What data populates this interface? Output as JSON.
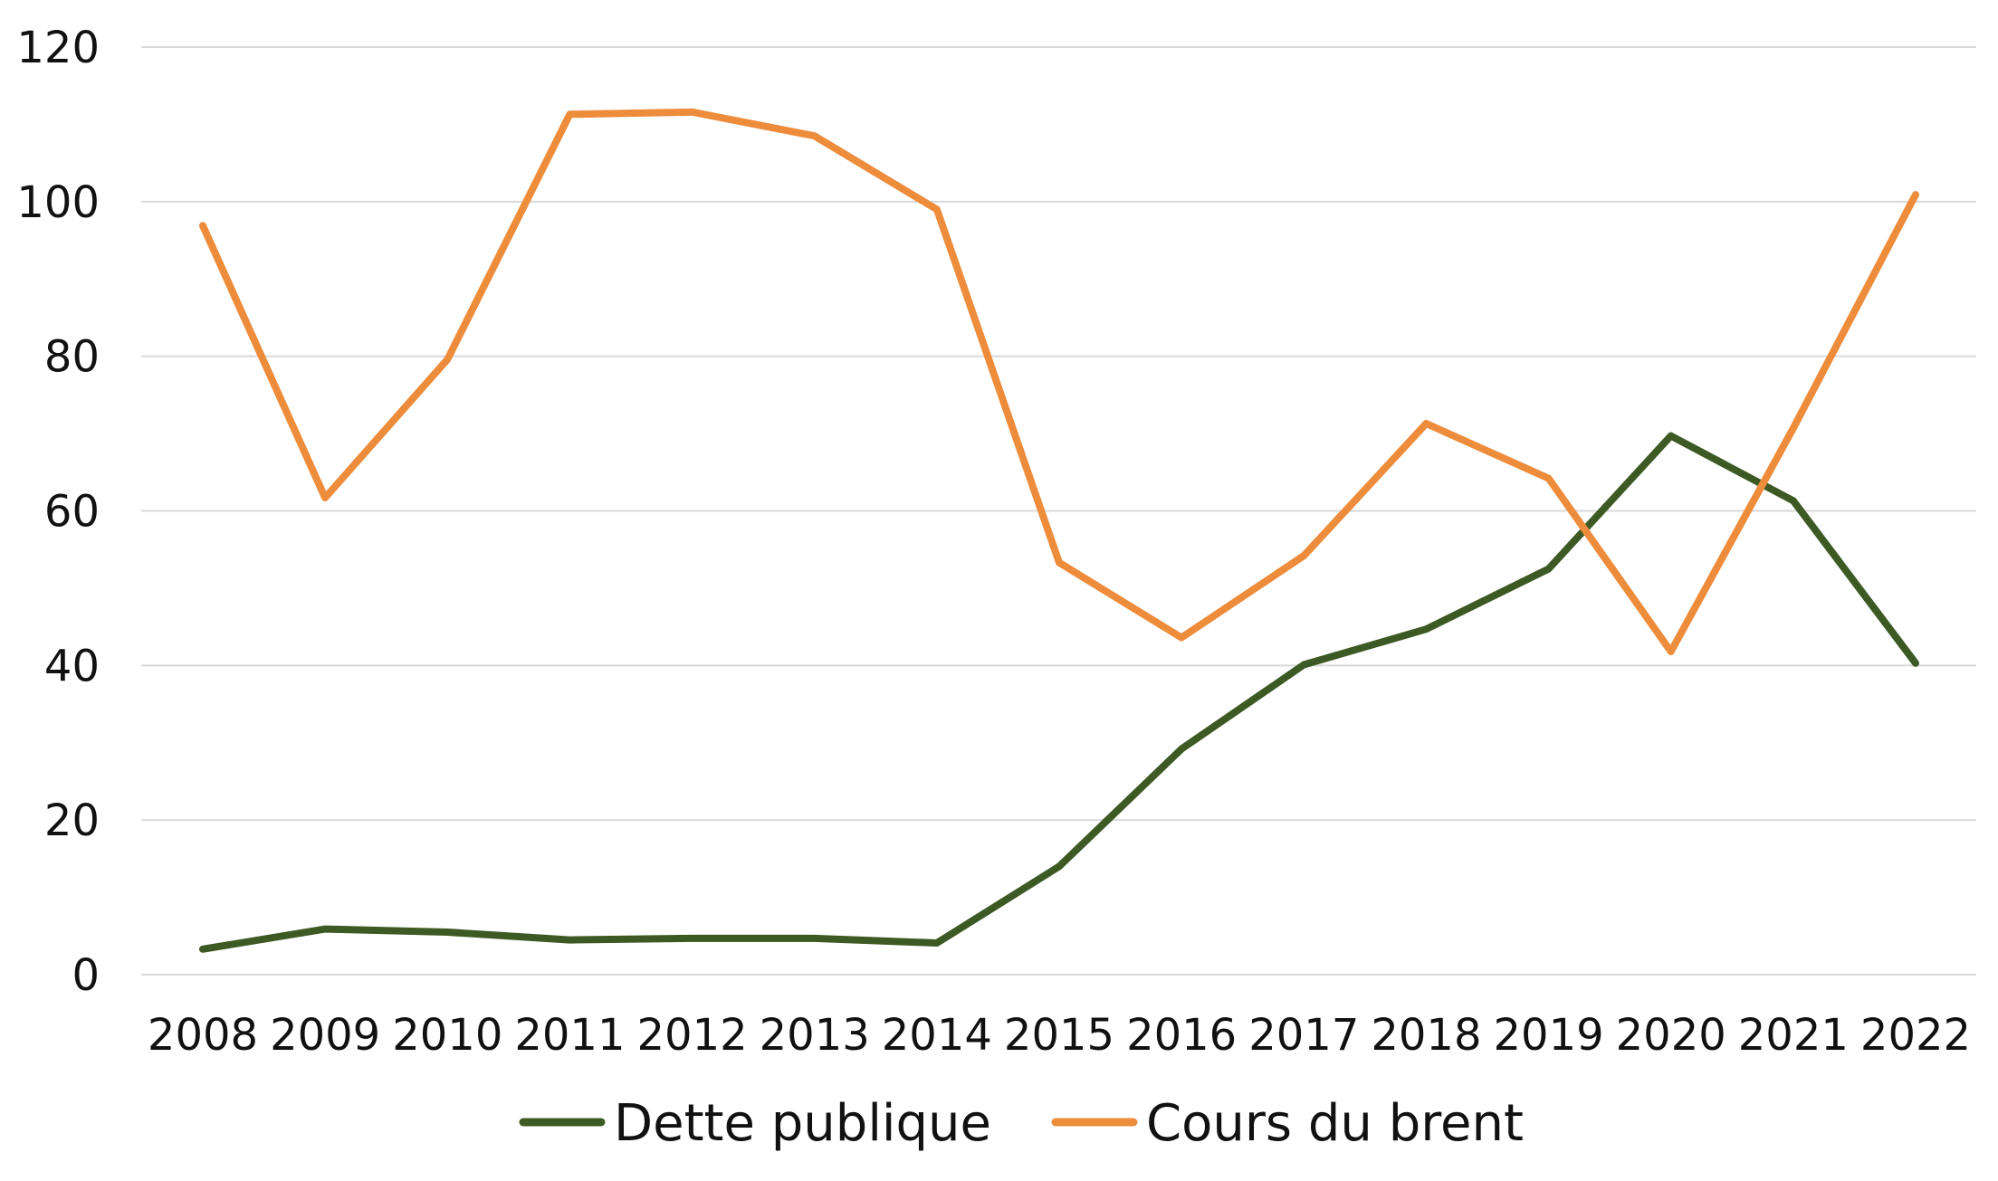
{
  "chart_data": {
    "type": "line",
    "title": "",
    "xlabel": "",
    "ylabel": "",
    "x": [
      "2008",
      "2009",
      "2010",
      "2011",
      "2012",
      "2013",
      "2014",
      "2015",
      "2016",
      "2017",
      "2018",
      "2019",
      "2020",
      "2021",
      "2022"
    ],
    "ylim": [
      0,
      120
    ],
    "yticks": [
      0,
      20,
      40,
      60,
      80,
      100,
      120
    ],
    "grid": true,
    "legend_position": "bottom",
    "series": [
      {
        "name": "Dette publique",
        "color": "#3d5a24",
        "values": [
          3.3,
          5.9,
          5.5,
          4.5,
          4.7,
          4.7,
          4.1,
          14.0,
          29.2,
          40.1,
          44.7,
          52.5,
          69.7,
          61.3,
          40.3
        ]
      },
      {
        "name": "Cours du brent",
        "color": "#ed8c3b",
        "values": [
          96.9,
          61.7,
          79.6,
          111.3,
          111.6,
          108.5,
          99.0,
          53.3,
          43.6,
          54.2,
          71.3,
          64.2,
          41.8,
          70.7,
          100.9
        ]
      }
    ]
  }
}
